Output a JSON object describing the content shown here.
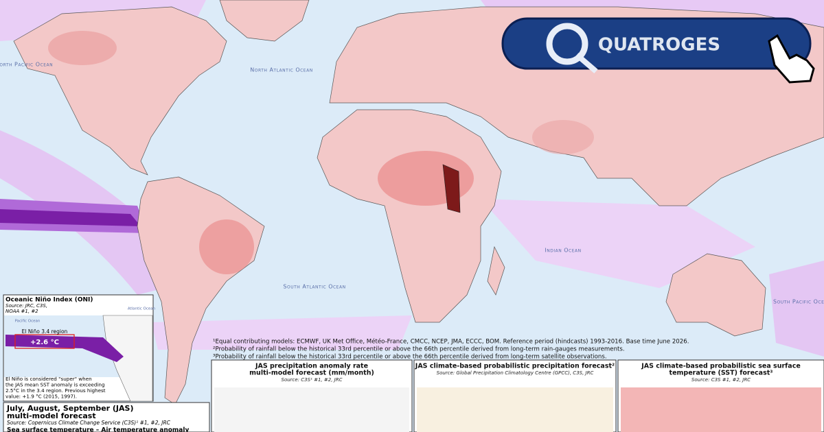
{
  "map": {
    "ocean_labels": [
      "North Pacific Ocean",
      "North Atlantic Ocean",
      "South Atlantic Ocean",
      "Indian Ocean",
      "South Pacific Ocean"
    ]
  },
  "logo": {
    "text": "QUATROGES"
  },
  "oni_inset": {
    "title": "Oceanic Niño Index (ONI)",
    "source_lines": [
      "Source: JRC, C3S,",
      "NOAA #1, #2"
    ],
    "labels": [
      "Atlantic Ocean",
      "Pacific Ocean"
    ],
    "region": "El Niño 3.4 region",
    "value": "+2.6 °C",
    "note_lines": [
      "El Niño is considered \"super\" when",
      "the JAS mean SST anomaly is exceeding",
      "2.5°C in the 3.4 region. Previous highest",
      "value: +1.9 °C (2015, 1997)."
    ]
  },
  "footnotes": [
    "¹Equal contributing models: ECMWF, UK Met Office, Météo-France, CMCC, NCEP, JMA, ECCC, BOM. Reference period (hindcasts) 1993-2016. Base time June 2026.",
    "²Probability of rainfall below the historical 33rd percentile or above the 66th percentile derived from long-term rain-gauges measurements.",
    "³Probability of rainfall below the historical 33rd percentile or above the 66th percentile derived from long-term satellite observations."
  ],
  "panels": [
    {
      "title_lines": [
        "JAS precipitation anomaly rate",
        "multi-model forecast (mm/month)"
      ],
      "source": "Source: C3S¹ #1, #2, JRC"
    },
    {
      "title_lines": [
        "JAS climate-based probabilistic precipitation forecast²"
      ],
      "source": "Source: Global Precipitation Climatology Centre (GPCC), C3S, JRC"
    },
    {
      "title_lines": [
        "JAS climate-based probabilistic sea surface",
        "temperature (SST) forecast³"
      ],
      "source": "Source: C3S #1, #2, JRC"
    }
  ],
  "main": {
    "title_lines": [
      "July, August, September (JAS)",
      "multi-model forecast"
    ],
    "source": "Source: Copernicus Climate Change Service (C3S)¹ #1, #2, JRC",
    "variables": "Sea surface temperature – Air temperature anomaly"
  }
}
